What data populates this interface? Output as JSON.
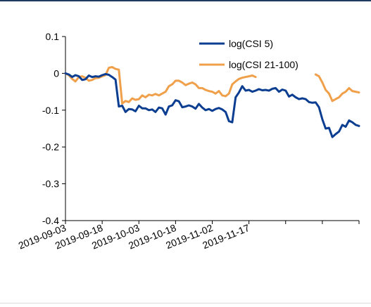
{
  "chart_data": {
    "type": "line",
    "title": "",
    "xlabel": "",
    "ylabel": "",
    "ylim": [
      -0.4,
      0.1
    ],
    "yticks": [
      "0.1",
      "0",
      "-0.1",
      "-0.2",
      "-0.3",
      "-0.4"
    ],
    "xtick_labels": [
      "2019-09-03",
      "2019-09-18",
      "2019-10-03",
      "2019-10-18",
      "2019-11-02",
      "2019-11-17"
    ],
    "legend_position": "top-right",
    "grid": false,
    "series": [
      {
        "name": "log(CSI 5)",
        "color": "#0b3d91",
        "values": [
          [
            0,
            0
          ],
          [
            1,
            -0.003
          ],
          [
            2,
            -0.01
          ],
          [
            3,
            -0.005
          ],
          [
            4,
            -0.008
          ],
          [
            5,
            -0.018
          ],
          [
            6,
            -0.016
          ],
          [
            7,
            -0.006
          ],
          [
            8,
            -0.01
          ],
          [
            9,
            -0.008
          ],
          [
            10,
            -0.009
          ],
          [
            11,
            -0.005
          ],
          [
            12,
            -0.002
          ],
          [
            13,
            -0.004
          ],
          [
            14,
            -0.01
          ],
          [
            15,
            -0.017
          ],
          [
            16,
            -0.09
          ],
          [
            17,
            -0.088
          ],
          [
            18,
            -0.105
          ],
          [
            19,
            -0.097
          ],
          [
            20,
            -0.098
          ],
          [
            21,
            -0.103
          ],
          [
            22,
            -0.088
          ],
          [
            23,
            -0.095
          ],
          [
            24,
            -0.095
          ],
          [
            25,
            -0.1
          ],
          [
            26,
            -0.098
          ],
          [
            27,
            -0.105
          ],
          [
            28,
            -0.093
          ],
          [
            29,
            -0.095
          ],
          [
            30,
            -0.112
          ],
          [
            31,
            -0.09
          ],
          [
            32,
            -0.087
          ],
          [
            33,
            -0.073
          ],
          [
            34,
            -0.076
          ],
          [
            35,
            -0.092
          ],
          [
            36,
            -0.09
          ],
          [
            37,
            -0.087
          ],
          [
            38,
            -0.09
          ],
          [
            39,
            -0.096
          ],
          [
            40,
            -0.083
          ],
          [
            41,
            -0.093
          ],
          [
            42,
            -0.1
          ],
          [
            43,
            -0.097
          ],
          [
            44,
            -0.102
          ],
          [
            45,
            -0.097
          ],
          [
            46,
            -0.094
          ],
          [
            47,
            -0.098
          ],
          [
            48,
            -0.105
          ],
          [
            49,
            -0.13
          ],
          [
            50,
            -0.133
          ],
          [
            51,
            -0.065
          ],
          [
            52,
            -0.052
          ],
          [
            53,
            -0.035
          ],
          [
            54,
            -0.047
          ],
          [
            55,
            -0.045
          ],
          [
            56,
            -0.05
          ],
          [
            57,
            -0.047
          ],
          [
            58,
            -0.043
          ],
          [
            59,
            -0.046
          ],
          [
            60,
            -0.045
          ],
          [
            61,
            -0.047
          ],
          [
            62,
            -0.042
          ],
          [
            63,
            -0.04
          ],
          [
            64,
            -0.05
          ],
          [
            65,
            -0.044
          ],
          [
            66,
            -0.047
          ],
          [
            67,
            -0.063
          ],
          [
            68,
            -0.058
          ],
          [
            69,
            -0.065
          ],
          [
            70,
            -0.07
          ],
          [
            71,
            -0.068
          ],
          [
            72,
            -0.07
          ],
          [
            73,
            -0.078
          ],
          [
            74,
            -0.08
          ],
          [
            75,
            -0.079
          ],
          [
            76,
            -0.092
          ],
          [
            77,
            -0.125
          ],
          [
            78,
            -0.15
          ],
          [
            79,
            -0.148
          ],
          [
            80,
            -0.173
          ],
          [
            81,
            -0.165
          ],
          [
            82,
            -0.158
          ],
          [
            83,
            -0.14
          ],
          [
            84,
            -0.145
          ],
          [
            85,
            -0.128
          ],
          [
            86,
            -0.133
          ],
          [
            87,
            -0.14
          ],
          [
            88,
            -0.143
          ]
        ]
      },
      {
        "name": "log(CSI 21-100)",
        "color": "#f0a04b",
        "values": [
          [
            0,
            0
          ],
          [
            1,
            -0.005
          ],
          [
            2,
            -0.015
          ],
          [
            3,
            -0.022
          ],
          [
            4,
            -0.01
          ],
          [
            5,
            -0.008
          ],
          [
            6,
            -0.012
          ],
          [
            7,
            -0.02
          ],
          [
            8,
            -0.018
          ],
          [
            9,
            -0.013
          ],
          [
            10,
            -0.012
          ],
          [
            11,
            -0.008
          ],
          [
            12,
            -0.005
          ],
          [
            13,
            0.015
          ],
          [
            14,
            0.017
          ],
          [
            15,
            0.012
          ],
          [
            16,
            0.01
          ],
          [
            17,
            -0.082
          ],
          [
            18,
            -0.075
          ],
          [
            19,
            -0.078
          ],
          [
            20,
            -0.068
          ],
          [
            21,
            -0.072
          ],
          [
            22,
            -0.07
          ],
          [
            23,
            -0.06
          ],
          [
            24,
            -0.065
          ],
          [
            25,
            -0.058
          ],
          [
            26,
            -0.06
          ],
          [
            27,
            -0.056
          ],
          [
            28,
            -0.06
          ],
          [
            29,
            -0.055
          ],
          [
            30,
            -0.05
          ],
          [
            31,
            -0.035
          ],
          [
            32,
            -0.03
          ],
          [
            33,
            -0.02
          ],
          [
            34,
            -0.02
          ],
          [
            35,
            -0.025
          ],
          [
            36,
            -0.032
          ],
          [
            37,
            -0.028
          ],
          [
            38,
            -0.025
          ],
          [
            39,
            -0.03
          ],
          [
            40,
            -0.04
          ],
          [
            41,
            -0.04
          ],
          [
            42,
            -0.045
          ],
          [
            43,
            -0.048
          ],
          [
            44,
            -0.05
          ],
          [
            45,
            -0.055
          ],
          [
            46,
            -0.048
          ],
          [
            47,
            -0.06
          ],
          [
            48,
            -0.062
          ],
          [
            49,
            -0.055
          ],
          [
            50,
            -0.03
          ],
          [
            51,
            -0.022
          ],
          [
            52,
            -0.015
          ],
          [
            53,
            -0.012
          ],
          [
            54,
            -0.01
          ],
          [
            55,
            -0.008
          ],
          [
            56,
            -0.006
          ],
          [
            57,
            -0.01
          ],
          [
            75,
            -0.003
          ],
          [
            76,
            -0.008
          ],
          [
            77,
            -0.025
          ],
          [
            78,
            -0.045
          ],
          [
            79,
            -0.055
          ],
          [
            80,
            -0.075
          ],
          [
            81,
            -0.07
          ],
          [
            82,
            -0.065
          ],
          [
            83,
            -0.055
          ],
          [
            84,
            -0.05
          ],
          [
            85,
            -0.04
          ],
          [
            86,
            -0.048
          ],
          [
            87,
            -0.05
          ],
          [
            88,
            -0.052
          ]
        ]
      }
    ]
  }
}
